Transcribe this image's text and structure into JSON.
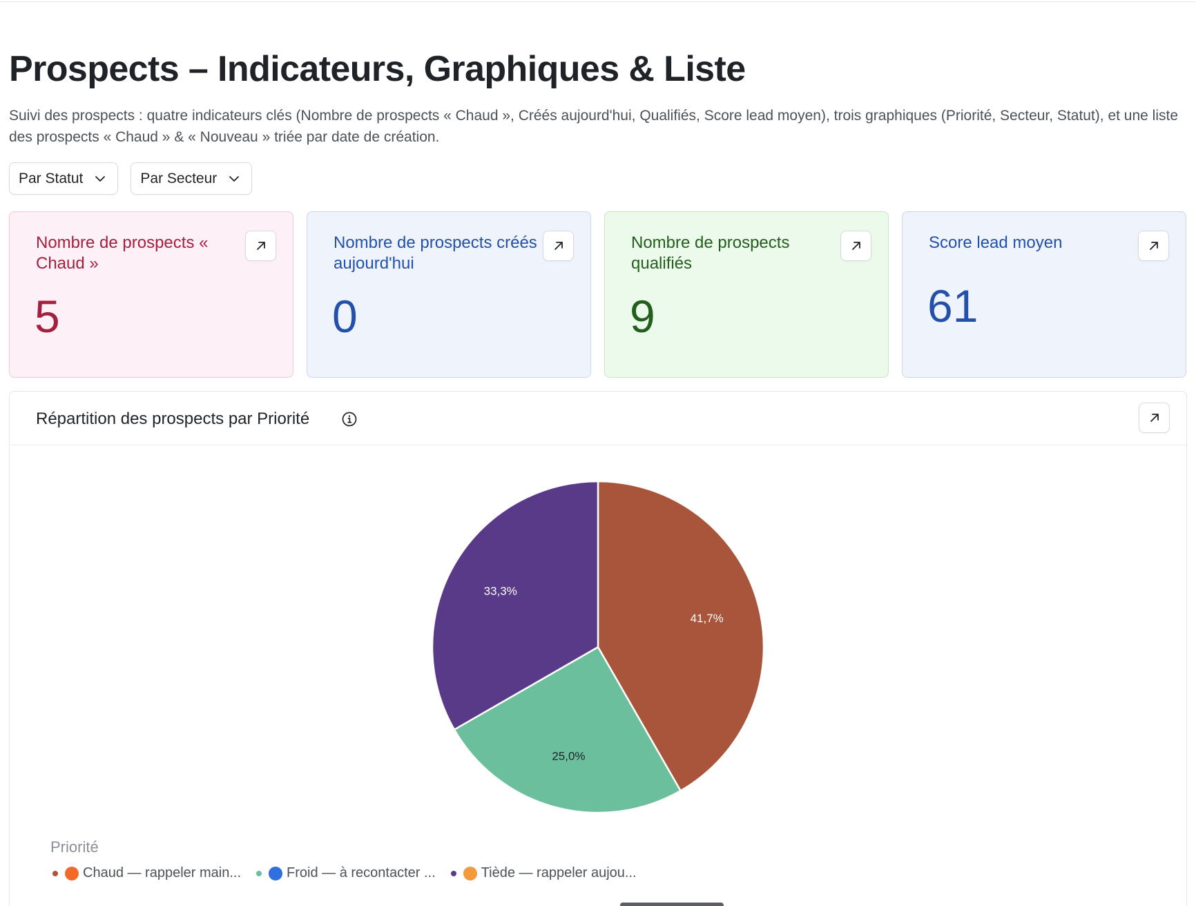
{
  "page": {
    "title": "Prospects – Indicateurs, Graphiques & Liste",
    "subtitle": "Suivi des prospects : quatre indicateurs clés (Nombre de prospects « Chaud », Créés aujourd'hui, Qualifiés, Score lead moyen), trois graphiques (Priorité, Secteur, Statut), et une liste des prospects « Chaud » & « Nouveau » triée par date de création."
  },
  "filters": [
    {
      "label": "Par Statut",
      "icon": "chevron-down-icon"
    },
    {
      "label": "Par Secteur",
      "icon": "chevron-down-icon"
    }
  ],
  "kpis": [
    {
      "label": "Nombre de prospects « Chaud »",
      "value": "5",
      "bg": "#fdf0f6",
      "border": "#f0c9d9",
      "color": "#a3213f"
    },
    {
      "label": "Nombre de prospects créés aujourd'hui",
      "value": "0",
      "bg": "#eff3fc",
      "border": "#cdd6ea",
      "color": "#2350a8"
    },
    {
      "label": "Nombre de prospects qualifiés",
      "value": "9",
      "bg": "#ebfaea",
      "border": "#c6e6c4",
      "color": "#235e1d"
    },
    {
      "label": "Score lead moyen",
      "value": "61",
      "bg": "#eff3fc",
      "border": "#cdd6ea",
      "color": "#2350a8"
    }
  ],
  "chart": {
    "title": "Répartition des prospects par Priorité",
    "legend_title": "Priorité"
  },
  "chart_data": {
    "type": "pie",
    "legend_placement": "bottom-left",
    "slices": [
      {
        "label": "🔥 Chaud — rappeler main...",
        "value": 41.7,
        "display": "41,7%",
        "color": "#a9553b",
        "text_color": "#ffffff",
        "emoji_color": "#ef6a2b"
      },
      {
        "label": "🔵 Froid — à recontacter ...",
        "value": 25.0,
        "display": "25,0%",
        "color": "#6bbf9c",
        "text_color": "#1f2328",
        "emoji_color": "#2f6fe0"
      },
      {
        "label": "🟠 Tiède — rappeler aujou...",
        "value": 33.3,
        "display": "33,3%",
        "color": "#583a89",
        "text_color": "#ffffff",
        "emoji_color": "#f29a3c"
      }
    ]
  }
}
